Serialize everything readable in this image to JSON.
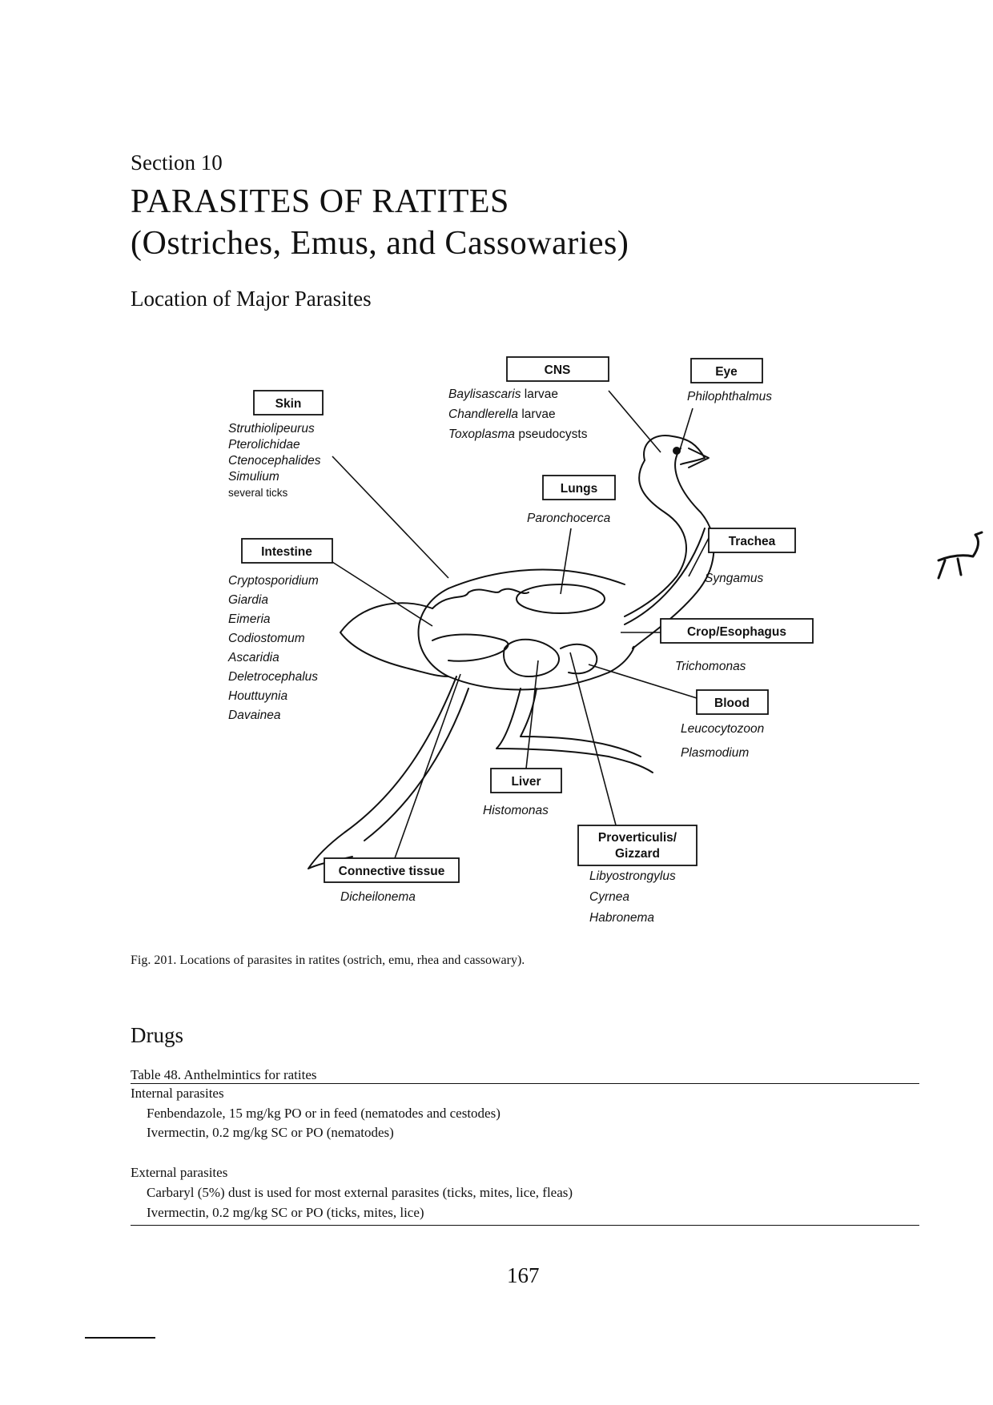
{
  "header": {
    "section": "Section 10",
    "title_line1": "PARASITES OF RATITES",
    "title_line2": "(Ostriches, Emus, and Cassowaries)",
    "subheading": "Location of Major Parasites"
  },
  "figure": {
    "boxes": {
      "cns": "CNS",
      "eye": "Eye",
      "skin": "Skin",
      "lungs": "Lungs",
      "trachea": "Trachea",
      "intestine": "Intestine",
      "crop": "Crop/Esophagus",
      "blood": "Blood",
      "liver": "Liver",
      "proventriculus_1": "Proverticulis/",
      "proventriculus_2": "Gizzard",
      "connective": "Connective tissue"
    },
    "cns_parasites": [
      {
        "genus": "Baylisascaris",
        "stage": "larvae"
      },
      {
        "genus": "Chandlerella",
        "stage": "larvae"
      },
      {
        "genus": "Toxoplasma",
        "stage": "pseudocysts"
      }
    ],
    "eye_parasites": [
      "Philophthalmus"
    ],
    "skin_parasites": [
      "Struthiolipeurus",
      "Pterolichidae",
      "Ctenocephalides",
      "Simulium"
    ],
    "skin_note": "several ticks",
    "lungs_parasites": [
      "Paronchocerca"
    ],
    "trachea_parasites": [
      "Syngamus"
    ],
    "intestine_parasites": [
      "Cryptosporidium",
      "Giardia",
      "Eimeria",
      "Codiostomum",
      "Ascaridia",
      "Deletrocephalus",
      "Houttuynia",
      "Davainea"
    ],
    "crop_parasites": [
      "Trichomonas"
    ],
    "blood_parasites": [
      "Leucocytozoon",
      "Plasmodium"
    ],
    "liver_parasites": [
      "Histomonas"
    ],
    "proventriculus_parasites": [
      "Libyostrongylus",
      "Cyrnea",
      "Habronema"
    ],
    "connective_parasites": [
      "Dicheilonema"
    ],
    "caption": "Fig. 201. Locations of parasites in ratites (ostrich, emu, rhea and cassowary)."
  },
  "drugs": {
    "heading": "Drugs",
    "table_caption": "Table 48. Anthelmintics for ratites",
    "internal_heading": "Internal parasites",
    "internal_items": [
      "Fenbendazole, 15 mg/kg PO or in feed (nematodes and cestodes)",
      "Ivermectin, 0.2 mg/kg SC or PO (nematodes)"
    ],
    "external_heading": "External parasites",
    "external_items": [
      "Carbaryl (5%) dust is used for most external parasites (ticks, mites, lice, fleas)",
      "Ivermectin, 0.2 mg/kg SC or PO (ticks, mites, lice)"
    ]
  },
  "page_number": "167"
}
